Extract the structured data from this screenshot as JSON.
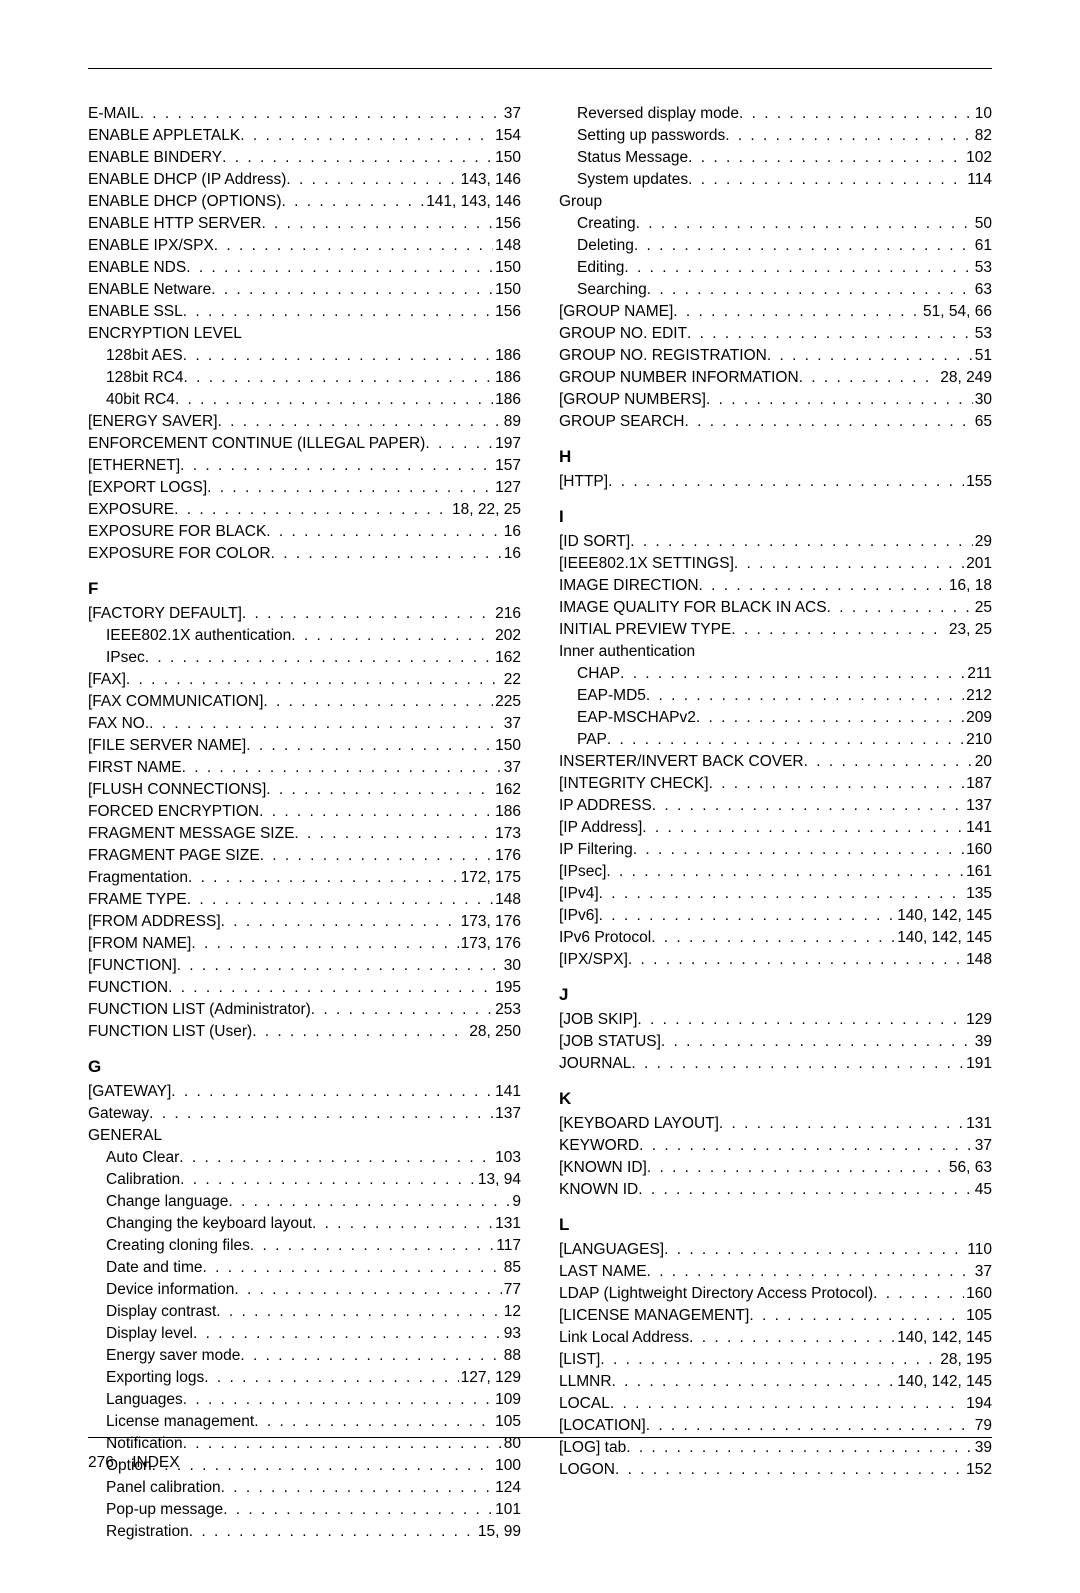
{
  "page": {
    "number": "276",
    "title": "INDEX",
    "leader": ". . . . . . . . . . . . . . . . . . . . . . . . . . . . . . . . . . . . . . . . . . . . . . . . . . . . . . . . . . . . . . . . . . . . . . . . . . . . . . . ."
  },
  "left": [
    {
      "t": "e",
      "l": "E-MAIL",
      "p": "37"
    },
    {
      "t": "e",
      "l": "ENABLE APPLETALK",
      "p": "154"
    },
    {
      "t": "e",
      "l": "ENABLE BINDERY",
      "p": "150"
    },
    {
      "t": "e",
      "l": "ENABLE DHCP (IP Address)",
      "p": "143, 146"
    },
    {
      "t": "e",
      "l": "ENABLE DHCP (OPTIONS)",
      "p": "141, 143, 146"
    },
    {
      "t": "e",
      "l": "ENABLE HTTP SERVER",
      "p": "156"
    },
    {
      "t": "e",
      "l": "ENABLE IPX/SPX",
      "p": "148"
    },
    {
      "t": "e",
      "l": "ENABLE NDS",
      "p": "150"
    },
    {
      "t": "e",
      "l": "ENABLE Netware",
      "p": "150"
    },
    {
      "t": "e",
      "l": "ENABLE SSL",
      "p": "156"
    },
    {
      "t": "lbl",
      "l": "ENCRYPTION LEVEL"
    },
    {
      "t": "e",
      "i": 1,
      "l": "128bit AES",
      "p": "186"
    },
    {
      "t": "e",
      "i": 1,
      "l": "128bit RC4",
      "p": "186"
    },
    {
      "t": "e",
      "i": 1,
      "l": "40bit RC4",
      "p": "186"
    },
    {
      "t": "e",
      "l": "[ENERGY SAVER]",
      "p": "89"
    },
    {
      "t": "e",
      "l": "ENFORCEMENT CONTINUE (ILLEGAL PAPER)",
      "p": "197"
    },
    {
      "t": "e",
      "l": "[ETHERNET]",
      "p": "157"
    },
    {
      "t": "e",
      "l": "[EXPORT LOGS]",
      "p": "127"
    },
    {
      "t": "e",
      "l": "EXPOSURE",
      "p": "18, 22, 25"
    },
    {
      "t": "e",
      "l": "EXPOSURE FOR BLACK",
      "p": "16"
    },
    {
      "t": "e",
      "l": "EXPOSURE FOR COLOR",
      "p": "16"
    },
    {
      "t": "h",
      "l": "F"
    },
    {
      "t": "e",
      "l": "[FACTORY DEFAULT]",
      "p": "216"
    },
    {
      "t": "e",
      "i": 1,
      "l": "IEEE802.1X authentication",
      "p": "202"
    },
    {
      "t": "e",
      "i": 1,
      "l": "IPsec",
      "p": "162"
    },
    {
      "t": "e",
      "l": "[FAX]",
      "p": "22"
    },
    {
      "t": "e",
      "l": "[FAX COMMUNICATION]",
      "p": "225"
    },
    {
      "t": "e",
      "l": "FAX NO.",
      "p": "37"
    },
    {
      "t": "e",
      "l": "[FILE SERVER NAME]",
      "p": "150"
    },
    {
      "t": "e",
      "l": "FIRST NAME",
      "p": "37"
    },
    {
      "t": "e",
      "l": "[FLUSH CONNECTIONS]",
      "p": "162"
    },
    {
      "t": "e",
      "l": "FORCED ENCRYPTION",
      "p": "186"
    },
    {
      "t": "e",
      "l": "FRAGMENT MESSAGE SIZE",
      "p": "173"
    },
    {
      "t": "e",
      "l": "FRAGMENT PAGE SIZE",
      "p": "176"
    },
    {
      "t": "e",
      "l": "Fragmentation",
      "p": "172, 175"
    },
    {
      "t": "e",
      "l": "FRAME TYPE",
      "p": "148"
    },
    {
      "t": "e",
      "l": "[FROM ADDRESS]",
      "p": "173, 176"
    },
    {
      "t": "e",
      "l": "[FROM NAME]",
      "p": "173, 176"
    },
    {
      "t": "e",
      "l": "[FUNCTION]",
      "p": "30"
    },
    {
      "t": "e",
      "l": "FUNCTION",
      "p": "195"
    },
    {
      "t": "e",
      "l": "FUNCTION LIST (Administrator)",
      "p": "253"
    },
    {
      "t": "e",
      "l": "FUNCTION LIST (User)",
      "p": "28, 250"
    },
    {
      "t": "h",
      "l": "G"
    },
    {
      "t": "e",
      "l": "[GATEWAY]",
      "p": "141"
    },
    {
      "t": "e",
      "l": "Gateway",
      "p": "137"
    },
    {
      "t": "lbl",
      "l": "GENERAL"
    },
    {
      "t": "e",
      "i": 1,
      "l": "Auto Clear",
      "p": "103"
    },
    {
      "t": "e",
      "i": 1,
      "l": "Calibration",
      "p": "13, 94"
    },
    {
      "t": "e",
      "i": 1,
      "l": "Change language",
      "p": "9"
    },
    {
      "t": "e",
      "i": 1,
      "l": "Changing the keyboard layout",
      "p": "131"
    },
    {
      "t": "e",
      "i": 1,
      "l": "Creating cloning files",
      "p": "117"
    },
    {
      "t": "e",
      "i": 1,
      "l": "Date and time",
      "p": "85"
    },
    {
      "t": "e",
      "i": 1,
      "l": "Device information",
      "p": "77"
    },
    {
      "t": "e",
      "i": 1,
      "l": "Display contrast",
      "p": "12"
    },
    {
      "t": "e",
      "i": 1,
      "l": "Display level",
      "p": "93"
    },
    {
      "t": "e",
      "i": 1,
      "l": "Energy saver mode",
      "p": "88"
    },
    {
      "t": "e",
      "i": 1,
      "l": "Exporting logs",
      "p": "127, 129"
    },
    {
      "t": "e",
      "i": 1,
      "l": "Languages",
      "p": "109"
    },
    {
      "t": "e",
      "i": 1,
      "l": "License management",
      "p": "105"
    },
    {
      "t": "e",
      "i": 1,
      "l": "Notification",
      "p": "80"
    },
    {
      "t": "e",
      "i": 1,
      "l": "Option",
      "p": "100"
    },
    {
      "t": "e",
      "i": 1,
      "l": "Panel calibration",
      "p": "124"
    },
    {
      "t": "e",
      "i": 1,
      "l": "Pop-up message",
      "p": "101"
    },
    {
      "t": "e",
      "i": 1,
      "l": "Registration",
      "p": "15, 99"
    }
  ],
  "right": [
    {
      "t": "e",
      "i": 1,
      "l": "Reversed display mode",
      "p": "10"
    },
    {
      "t": "e",
      "i": 1,
      "l": "Setting up passwords",
      "p": "82"
    },
    {
      "t": "e",
      "i": 1,
      "l": "Status Message",
      "p": "102"
    },
    {
      "t": "e",
      "i": 1,
      "l": "System updates",
      "p": "114"
    },
    {
      "t": "lbl",
      "l": "Group"
    },
    {
      "t": "e",
      "i": 1,
      "l": "Creating",
      "p": "50"
    },
    {
      "t": "e",
      "i": 1,
      "l": "Deleting",
      "p": "61"
    },
    {
      "t": "e",
      "i": 1,
      "l": "Editing",
      "p": "53"
    },
    {
      "t": "e",
      "i": 1,
      "l": "Searching",
      "p": "63"
    },
    {
      "t": "e",
      "l": "[GROUP NAME]",
      "p": "51, 54, 66"
    },
    {
      "t": "e",
      "l": "GROUP NO. EDIT",
      "p": "53"
    },
    {
      "t": "e",
      "l": "GROUP NO. REGISTRATION",
      "p": "51"
    },
    {
      "t": "e",
      "l": "GROUP NUMBER INFORMATION",
      "p": "28, 249"
    },
    {
      "t": "e",
      "l": "[GROUP NUMBERS]",
      "p": "30"
    },
    {
      "t": "e",
      "l": "GROUP SEARCH",
      "p": "65"
    },
    {
      "t": "h",
      "l": "H"
    },
    {
      "t": "e",
      "l": "[HTTP]",
      "p": "155"
    },
    {
      "t": "h",
      "l": "I"
    },
    {
      "t": "e",
      "l": "[ID SORT]",
      "p": "29"
    },
    {
      "t": "e",
      "l": "[IEEE802.1X SETTINGS]",
      "p": "201"
    },
    {
      "t": "e",
      "l": "IMAGE DIRECTION",
      "p": "16, 18"
    },
    {
      "t": "e",
      "l": "IMAGE QUALITY FOR BLACK IN ACS",
      "p": "25"
    },
    {
      "t": "e",
      "l": "INITIAL PREVIEW TYPE",
      "p": "23, 25"
    },
    {
      "t": "lbl",
      "l": "Inner authentication"
    },
    {
      "t": "e",
      "i": 1,
      "l": "CHAP",
      "p": "211"
    },
    {
      "t": "e",
      "i": 1,
      "l": "EAP-MD5",
      "p": "212"
    },
    {
      "t": "e",
      "i": 1,
      "l": "EAP-MSCHAPv2",
      "p": "209"
    },
    {
      "t": "e",
      "i": 1,
      "l": "PAP",
      "p": "210"
    },
    {
      "t": "e",
      "l": "INSERTER/INVERT BACK COVER",
      "p": "20"
    },
    {
      "t": "e",
      "l": "[INTEGRITY CHECK]",
      "p": "187"
    },
    {
      "t": "e",
      "l": "IP ADDRESS",
      "p": "137"
    },
    {
      "t": "e",
      "l": "[IP Address]",
      "p": "141"
    },
    {
      "t": "e",
      "l": "IP Filtering",
      "p": "160"
    },
    {
      "t": "e",
      "l": "[IPsec]",
      "p": "161"
    },
    {
      "t": "e",
      "l": "[IPv4]",
      "p": "135"
    },
    {
      "t": "e",
      "l": "[IPv6]",
      "p": "140, 142, 145"
    },
    {
      "t": "e",
      "l": "IPv6 Protocol",
      "p": "140, 142, 145"
    },
    {
      "t": "e",
      "l": "[IPX/SPX]",
      "p": "148"
    },
    {
      "t": "h",
      "l": "J"
    },
    {
      "t": "e",
      "l": "[JOB SKIP]",
      "p": "129"
    },
    {
      "t": "e",
      "l": "[JOB STATUS]",
      "p": "39"
    },
    {
      "t": "e",
      "l": "JOURNAL",
      "p": "191"
    },
    {
      "t": "h",
      "l": "K"
    },
    {
      "t": "e",
      "l": "[KEYBOARD LAYOUT]",
      "p": "131"
    },
    {
      "t": "e",
      "l": "KEYWORD",
      "p": "37"
    },
    {
      "t": "e",
      "l": "[KNOWN ID]",
      "p": "56, 63"
    },
    {
      "t": "e",
      "l": "KNOWN ID",
      "p": "45"
    },
    {
      "t": "h",
      "l": "L"
    },
    {
      "t": "e",
      "l": "[LANGUAGES]",
      "p": "110"
    },
    {
      "t": "e",
      "l": "LAST NAME",
      "p": "37"
    },
    {
      "t": "e",
      "l": "LDAP (Lightweight Directory Access Protocol)",
      "p": "160"
    },
    {
      "t": "e",
      "l": "[LICENSE MANAGEMENT]",
      "p": "105"
    },
    {
      "t": "e",
      "l": "Link Local Address",
      "p": "140, 142, 145"
    },
    {
      "t": "e",
      "l": "[LIST]",
      "p": "28, 195"
    },
    {
      "t": "e",
      "l": "LLMNR",
      "p": "140, 142, 145"
    },
    {
      "t": "e",
      "l": "LOCAL",
      "p": "194"
    },
    {
      "t": "e",
      "l": "[LOCATION]",
      "p": "79"
    },
    {
      "t": "e",
      "l": "[LOG] tab",
      "p": "39"
    },
    {
      "t": "e",
      "l": "LOGON",
      "p": "152"
    }
  ]
}
